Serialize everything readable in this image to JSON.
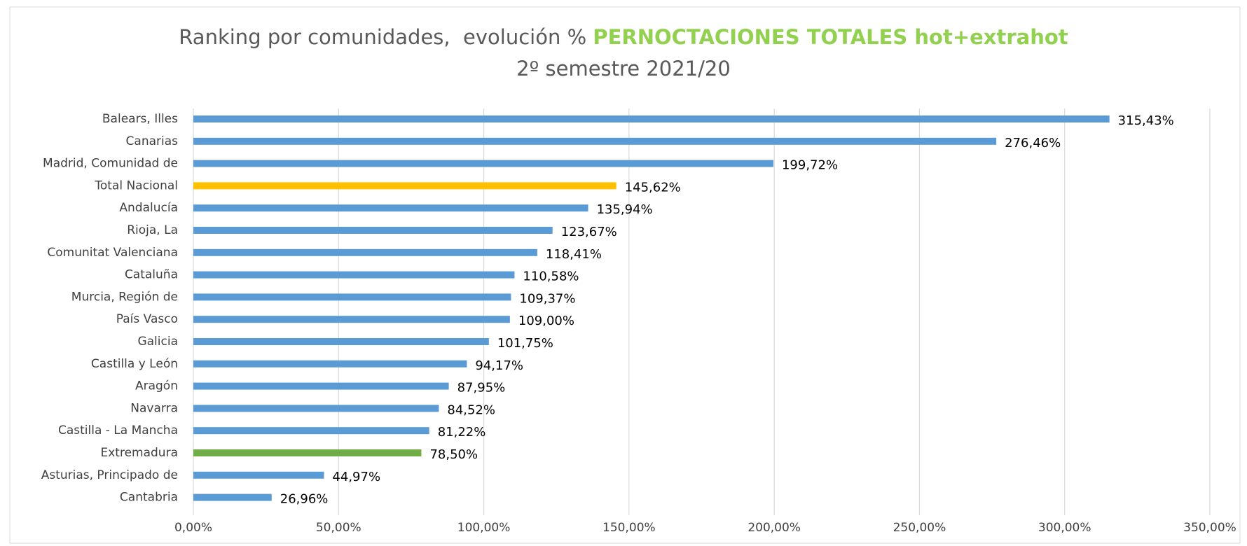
{
  "chart_data": {
    "type": "bar",
    "orientation": "horizontal",
    "title": "Ranking por comunidades,  evolución % ",
    "title_highlight": "PERNOCTACIONES TOTALES hot+extrahot",
    "title_highlight_color": "#92d050",
    "subtitle": "2º semestre 2021/20",
    "categories": [
      "Balears, Illes",
      "Canarias",
      "Madrid, Comunidad de",
      "Total Nacional",
      "Andalucía",
      "Rioja, La",
      "Comunitat Valenciana",
      "Cataluña",
      "Murcia, Región de",
      "País Vasco",
      "Galicia",
      "Castilla y León",
      "Aragón",
      "Navarra",
      "Castilla - La Mancha",
      "Extremadura",
      "Asturias, Principado de",
      "Cantabria"
    ],
    "values": [
      315.43,
      276.46,
      199.72,
      145.62,
      135.94,
      123.67,
      118.41,
      110.58,
      109.37,
      109.0,
      101.75,
      94.17,
      87.95,
      84.52,
      81.22,
      78.5,
      44.97,
      26.96
    ],
    "value_labels": [
      "315,43%",
      "276,46%",
      "199,72%",
      "145,62%",
      "135,94%",
      "123,67%",
      "118,41%",
      "110,58%",
      "109,37%",
      "109,00%",
      "101,75%",
      "94,17%",
      "87,95%",
      "84,52%",
      "81,22%",
      "78,50%",
      "44,97%",
      "26,96%"
    ],
    "colors": [
      "#5b9bd5",
      "#5b9bd5",
      "#5b9bd5",
      "#ffc000",
      "#5b9bd5",
      "#5b9bd5",
      "#5b9bd5",
      "#5b9bd5",
      "#5b9bd5",
      "#5b9bd5",
      "#5b9bd5",
      "#5b9bd5",
      "#5b9bd5",
      "#5b9bd5",
      "#5b9bd5",
      "#70ad47",
      "#5b9bd5",
      "#5b9bd5"
    ],
    "xlim": [
      0,
      350
    ],
    "xticks": [
      {
        "value": 0,
        "label": "0,00%"
      },
      {
        "value": 50,
        "label": "50,00%"
      },
      {
        "value": 100,
        "label": "100,00%"
      },
      {
        "value": 150,
        "label": "150,00%"
      },
      {
        "value": 200,
        "label": "200,00%"
      },
      {
        "value": 250,
        "label": "250,00%"
      },
      {
        "value": 300,
        "label": "300,00%"
      },
      {
        "value": 350,
        "label": "350,00%"
      }
    ],
    "grid": true
  }
}
